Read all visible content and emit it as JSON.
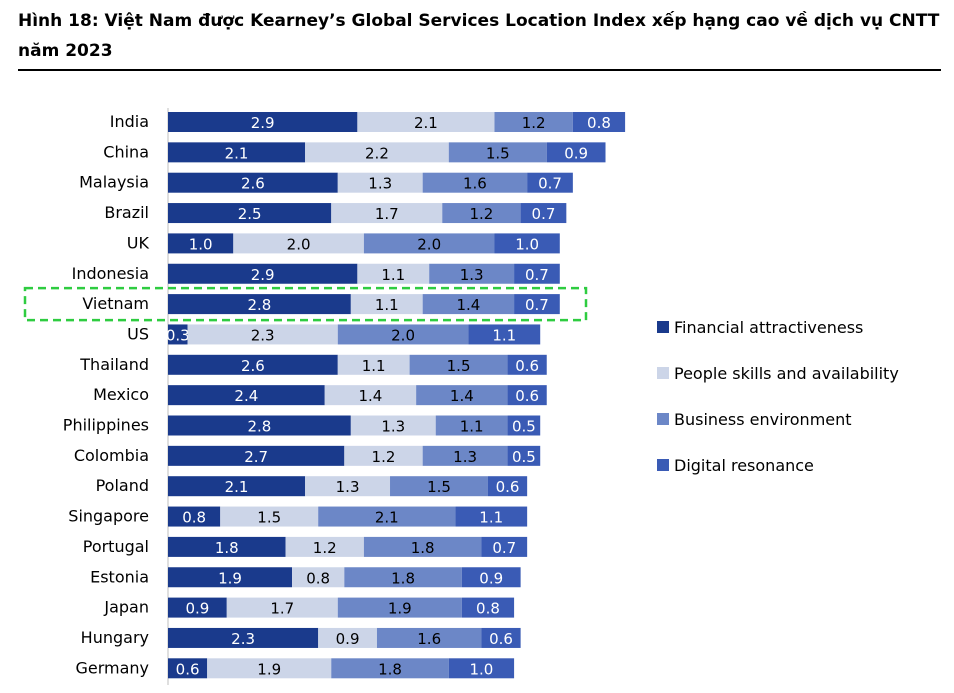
{
  "header": {
    "title": "Hình 18: Việt Nam được Kearney’s Global Services Location Index xếp hạng cao về dịch vụ CNTT năm 2023"
  },
  "chart_data": {
    "type": "bar",
    "orientation": "horizontal",
    "stacked": true,
    "categories": [
      "India",
      "China",
      "Malaysia",
      "Brazil",
      "UK",
      "Indonesia",
      "Vietnam",
      "US",
      "Thailand",
      "Mexico",
      "Philippines",
      "Colombia",
      "Poland",
      "Singapore",
      "Portugal",
      "Estonia",
      "Japan",
      "Hungary",
      "Germany"
    ],
    "series": [
      {
        "name": "Financial attractiveness",
        "color": "#1a3a8c",
        "label_color": "#ffffff",
        "values": [
          2.9,
          2.1,
          2.6,
          2.5,
          1.0,
          2.9,
          2.8,
          0.3,
          2.6,
          2.4,
          2.8,
          2.7,
          2.1,
          0.8,
          1.8,
          1.9,
          0.9,
          2.3,
          0.6
        ]
      },
      {
        "name": "People skills and availability",
        "color": "#ccd5e8",
        "label_color": "#000000",
        "values": [
          2.1,
          2.2,
          1.3,
          1.7,
          2.0,
          1.1,
          1.1,
          2.3,
          1.1,
          1.4,
          1.3,
          1.2,
          1.3,
          1.5,
          1.2,
          0.8,
          1.7,
          0.9,
          1.9
        ]
      },
      {
        "name": "Business environment",
        "color": "#6c87c7",
        "label_color": "#000000",
        "values": [
          1.2,
          1.5,
          1.6,
          1.2,
          2.0,
          1.3,
          1.4,
          2.0,
          1.5,
          1.4,
          1.1,
          1.3,
          1.5,
          2.1,
          1.8,
          1.8,
          1.9,
          1.6,
          1.8
        ]
      },
      {
        "name": "Digital resonance",
        "color": "#3a5bb5",
        "label_color": "#ffffff",
        "values": [
          0.8,
          0.9,
          0.7,
          0.7,
          1.0,
          0.7,
          0.7,
          1.1,
          0.6,
          0.6,
          0.5,
          0.5,
          0.6,
          1.1,
          0.7,
          0.9,
          0.8,
          0.6,
          1.0
        ]
      }
    ],
    "highlight": {
      "category": "Vietnam",
      "style": "dashed green box",
      "color": "#2ecc40"
    },
    "legend_position": "right",
    "grid": false
  }
}
